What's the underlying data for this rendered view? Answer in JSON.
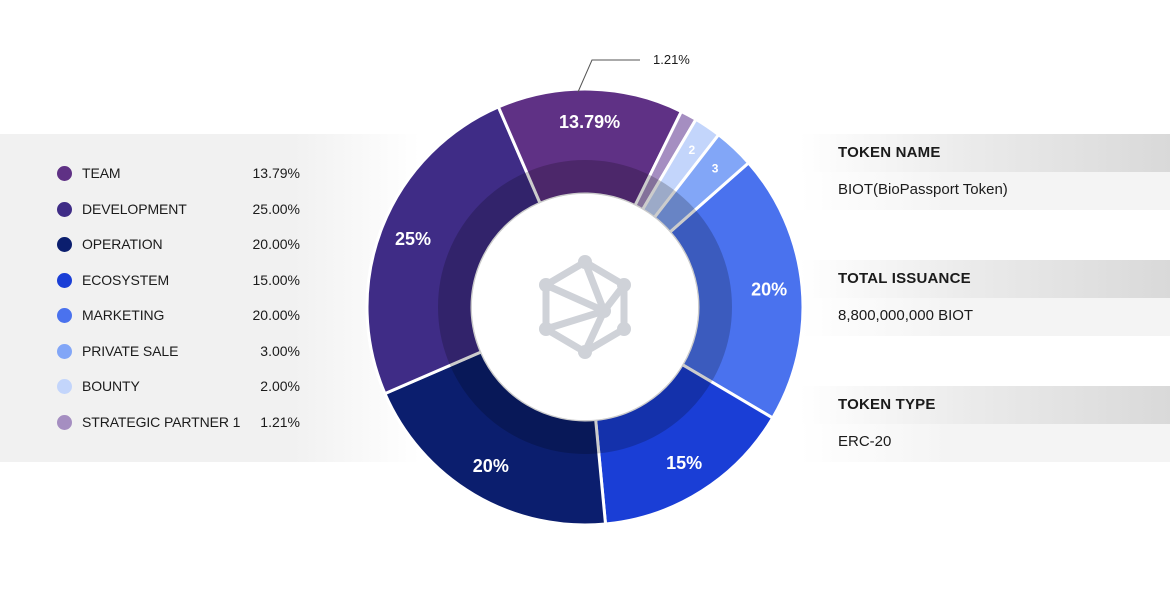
{
  "legend": {
    "items": [
      {
        "name": "TEAM",
        "value": "13.79%",
        "color": "#5f3185"
      },
      {
        "name": "DEVELOPMENT",
        "value": "25.00%",
        "color": "#3f2c86"
      },
      {
        "name": "OPERATION",
        "value": "20.00%",
        "color": "#0b1e6e"
      },
      {
        "name": "ECOSYSTEM",
        "value": "15.00%",
        "color": "#1a3ed6"
      },
      {
        "name": "MARKETING",
        "value": "20.00%",
        "color": "#4a72ee"
      },
      {
        "name": "PRIVATE SALE",
        "value": "3.00%",
        "color": "#82a6f7"
      },
      {
        "name": "BOUNTY",
        "value": "2.00%",
        "color": "#c3d5fb"
      },
      {
        "name": "STRATEGIC PARTNER 1",
        "value": "1.21%",
        "color": "#a58ec1"
      }
    ]
  },
  "token_info": {
    "name_label": "TOKEN NAME",
    "name_value": "BIOT(BioPassport Token)",
    "issuance_label": "TOTAL ISSUANCE",
    "issuance_value": "8,800,000,000 BIOT",
    "type_label": "TOKEN TYPE",
    "type_value": "ERC-20"
  },
  "chart_data": {
    "type": "pie",
    "variant": "donut",
    "slices": [
      {
        "name": "MARKETING",
        "value": 20,
        "label": "20%",
        "color": "#4a72ee"
      },
      {
        "name": "ECOSYSTEM",
        "value": 15,
        "label": "15%",
        "color": "#1a3ed6"
      },
      {
        "name": "OPERATION",
        "value": 20,
        "label": "20%",
        "color": "#0b1e6e"
      },
      {
        "name": "DEVELOPMENT",
        "value": 25,
        "label": "25%",
        "color": "#3f2c86"
      },
      {
        "name": "TEAM",
        "value": 13.79,
        "label": "13.79%",
        "color": "#5f3185"
      },
      {
        "name": "STRATEGIC PARTNER 1",
        "value": 1.21,
        "label": "",
        "color": "#a58ec1"
      },
      {
        "name": "BOUNTY",
        "value": 2,
        "label": "2",
        "color": "#c3d5fb"
      },
      {
        "name": "PRIVATE SALE",
        "value": 3,
        "label": "3",
        "color": "#82a6f7"
      }
    ],
    "callout": {
      "slice": "STRATEGIC PARTNER 1",
      "text": "1.21%"
    },
    "center_icon": "network-cube-icon"
  }
}
